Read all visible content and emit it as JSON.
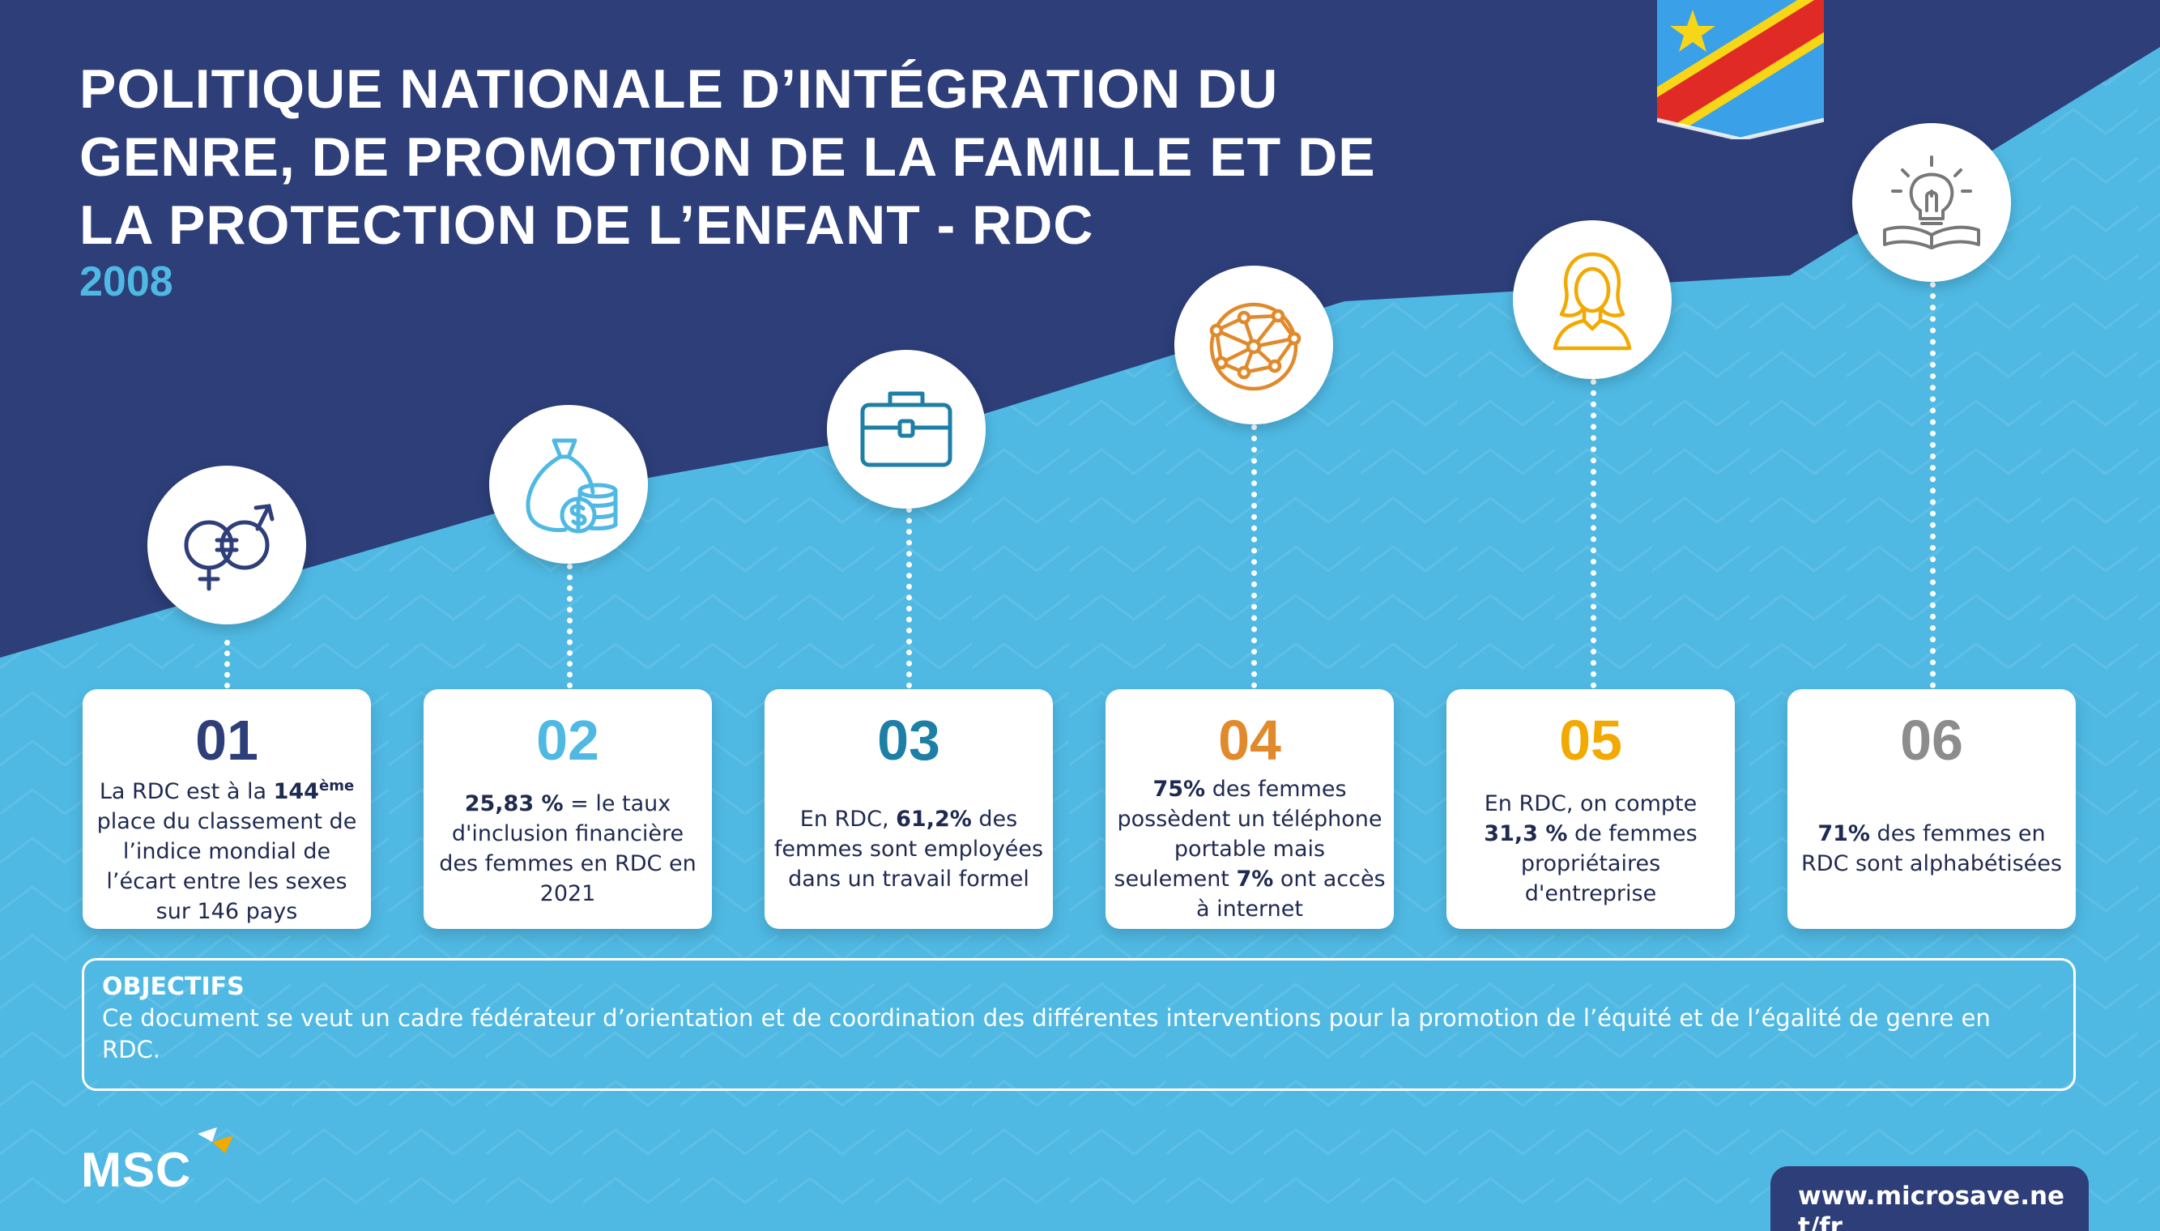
{
  "header": {
    "title_lines": [
      "POLITIQUE NATIONALE D’INTÉGRATION DU",
      "GENRE, DE PROMOTION DE LA FAMILLE ET DE",
      "LA PROTECTION DE L’ENFANT - RDC"
    ],
    "year": "2008"
  },
  "colors": {
    "dark_navy": "#2d3e79",
    "light_blue": "#4fb9e3",
    "num_01": "#2d3e79",
    "num_02": "#4fb9e3",
    "num_03": "#1e7fa6",
    "num_04": "#e08a2c",
    "num_05": "#f2a900",
    "num_06": "#8c8c8c",
    "flag_blue": "#3aa0e8",
    "flag_red": "#e02a26",
    "flag_yellow": "#f7d618"
  },
  "icons": [
    "gender-equality-icon",
    "money-bag-coins-icon",
    "briefcase-icon",
    "globe-network-icon",
    "woman-icon",
    "lightbulb-book-icon",
    "drc-flag-icon",
    "msc-logo-icon"
  ],
  "stats": [
    {
      "num": "01",
      "segments": [
        {
          "text": "La RDC est à la "
        },
        {
          "text": "144",
          "bold": true
        },
        {
          "text": "ème",
          "sup": true
        },
        {
          "text": " place du classement de l’indice mondial de l’écart entre les sexes sur 146 pays"
        }
      ]
    },
    {
      "num": "02",
      "segments": [
        {
          "text": "25,83 %",
          "bold": true
        },
        {
          "text": " = le taux d'inclusion financière des femmes en RDC en 2021"
        }
      ]
    },
    {
      "num": "03",
      "segments": [
        {
          "text": "En RDC, "
        },
        {
          "text": "61,2%",
          "bold": true
        },
        {
          "text": "  des femmes sont employées dans un travail formel"
        }
      ]
    },
    {
      "num": "04",
      "segments": [
        {
          "text": "75%",
          "bold": true
        },
        {
          "text": " des femmes possèdent un téléphone portable mais seulement "
        },
        {
          "text": "7%",
          "bold": true
        },
        {
          "text": " ont accès à internet"
        }
      ]
    },
    {
      "num": "05",
      "segments": [
        {
          "text": "En RDC, on compte "
        },
        {
          "text": "31,3 %",
          "bold": true
        },
        {
          "text": " de femmes propriétaires d'entreprise"
        }
      ]
    },
    {
      "num": "06",
      "segments": [
        {
          "text": "71%",
          "bold": true
        },
        {
          "text": " des femmes en RDC sont alphabétisées"
        }
      ]
    }
  ],
  "objectives": {
    "title": "OBJECTIFS",
    "text": "Ce document se veut un cadre fédérateur d’orientation et de coordination des différentes interventions pour  la promotion de l’équité et de l’égalité de genre en RDC."
  },
  "footer": {
    "logo_text": "MSC",
    "url": "www.microsave.net/fr"
  }
}
